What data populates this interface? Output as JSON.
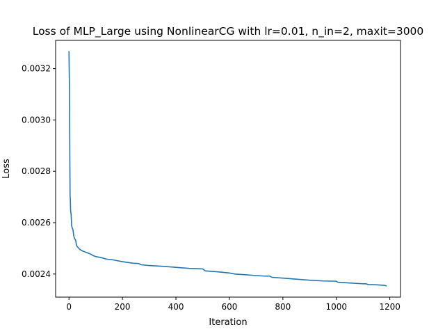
{
  "chart_data": {
    "type": "line",
    "title": "Loss of MLP_Large using NonlinearCG with lr=0.01, n_in=2, maxit=3000",
    "xlabel": "Iteration",
    "ylabel": "Loss",
    "xlim": [
      -50,
      1240
    ],
    "ylim": [
      0.00231,
      0.00331
    ],
    "x_ticks": [
      0,
      200,
      400,
      600,
      800,
      1000,
      1200
    ],
    "x_tick_labels": [
      "0",
      "200",
      "400",
      "600",
      "800",
      "1000",
      "1200"
    ],
    "y_ticks": [
      0.0024,
      0.0026,
      0.0028,
      0.003,
      0.0032
    ],
    "y_tick_labels": [
      "0.0024",
      "0.0026",
      "0.0028",
      "0.0030",
      "0.0032"
    ],
    "grid": false,
    "series": [
      {
        "color": "#1f77b4",
        "x": [
          0,
          1,
          2,
          3,
          4,
          5,
          6,
          8,
          10,
          12,
          15,
          18,
          20,
          22,
          25,
          28,
          30,
          35,
          40,
          50,
          60,
          70,
          80,
          90,
          100,
          120,
          140,
          160,
          180,
          200,
          220,
          240,
          260,
          270,
          300,
          350,
          400,
          450,
          500,
          510,
          550,
          600,
          620,
          650,
          700,
          730,
          750,
          760,
          800,
          850,
          900,
          950,
          1000,
          1005,
          1050,
          1100,
          1110,
          1120,
          1150,
          1180,
          1188
        ],
        "y": [
          0.003268,
          0.00318,
          0.003118,
          0.00288,
          0.002706,
          0.002692,
          0.00265,
          0.00263,
          0.002588,
          0.00258,
          0.002572,
          0.002548,
          0.00254,
          0.002536,
          0.002532,
          0.002512,
          0.002508,
          0.002502,
          0.002496,
          0.00249,
          0.002486,
          0.002482,
          0.002478,
          0.002472,
          0.002468,
          0.002464,
          0.002458,
          0.002456,
          0.002452,
          0.002448,
          0.002445,
          0.002442,
          0.002441,
          0.002436,
          0.002433,
          0.00243,
          0.002426,
          0.002422,
          0.00242,
          0.002412,
          0.002409,
          0.002404,
          0.0024,
          0.002398,
          0.002394,
          0.002392,
          0.002392,
          0.002387,
          0.002384,
          0.00238,
          0.002376,
          0.002373,
          0.002372,
          0.002368,
          0.002365,
          0.002362,
          0.002362,
          0.002359,
          0.002358,
          0.002356,
          0.002353
        ]
      }
    ]
  }
}
